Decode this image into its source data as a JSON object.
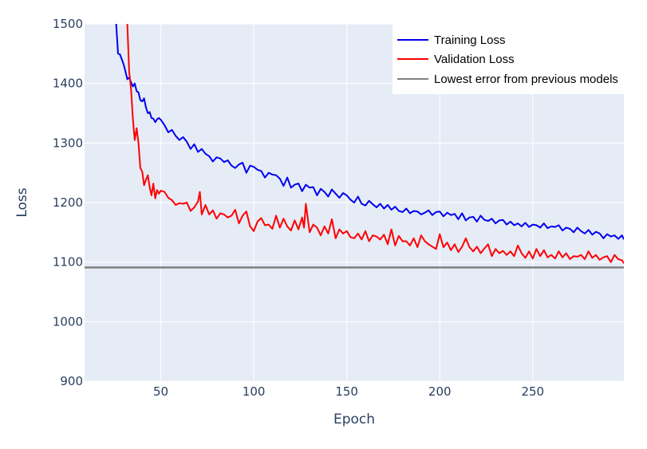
{
  "colors": {
    "plot_bg": "#e5ecf6",
    "grid": "#ffffff",
    "training": "#0000ee",
    "validation": "#ff0000",
    "baseline": "#808080",
    "legend_bg": "#ffffff"
  },
  "chart_data": {
    "type": "line",
    "title": "",
    "xlabel": "Epoch",
    "ylabel": "Loss",
    "xlim": [
      9,
      299
    ],
    "ylim": [
      900,
      1500
    ],
    "xticks": [
      50,
      100,
      150,
      200,
      250
    ],
    "yticks": [
      900,
      1000,
      1100,
      1200,
      1300,
      1400,
      1500
    ],
    "grid": true,
    "legend_position": "top-right",
    "legend": [
      "Training Loss",
      "Validation Loss",
      "Lowest error from previous models"
    ],
    "series": [
      {
        "name": "Training Loss",
        "color_key": "training",
        "x": [
          26,
          27,
          28,
          29,
          30,
          31,
          32,
          33,
          34,
          35,
          36,
          37,
          38,
          39,
          40,
          41,
          42,
          43,
          44,
          45,
          46,
          47,
          48,
          49,
          50,
          52,
          54,
          56,
          58,
          60,
          62,
          64,
          66,
          68,
          70,
          72,
          74,
          76,
          78,
          80,
          82,
          84,
          86,
          88,
          90,
          92,
          94,
          96,
          98,
          100,
          102,
          104,
          106,
          108,
          110,
          112,
          114,
          116,
          118,
          120,
          122,
          124,
          126,
          128,
          130,
          132,
          134,
          136,
          138,
          140,
          142,
          144,
          146,
          148,
          150,
          152,
          154,
          156,
          158,
          160,
          162,
          164,
          166,
          168,
          170,
          172,
          174,
          176,
          178,
          180,
          182,
          184,
          186,
          188,
          190,
          192,
          194,
          196,
          198,
          200,
          202,
          204,
          206,
          208,
          210,
          212,
          214,
          216,
          218,
          220,
          222,
          224,
          226,
          228,
          230,
          232,
          234,
          236,
          238,
          240,
          242,
          244,
          246,
          248,
          250,
          252,
          254,
          256,
          258,
          260,
          262,
          264,
          266,
          268,
          270,
          272,
          274,
          276,
          278,
          280,
          282,
          284,
          286,
          288,
          290,
          292,
          294,
          296,
          298,
          299
        ],
        "values": [
          1500,
          1450,
          1449,
          1441,
          1432,
          1420,
          1407,
          1410,
          1402,
          1395,
          1400,
          1387,
          1385,
          1372,
          1370,
          1375,
          1360,
          1350,
          1352,
          1342,
          1341,
          1335,
          1340,
          1342,
          1339,
          1330,
          1318,
          1322,
          1312,
          1305,
          1310,
          1302,
          1290,
          1298,
          1285,
          1290,
          1282,
          1278,
          1269,
          1276,
          1274,
          1268,
          1271,
          1262,
          1258,
          1264,
          1267,
          1250,
          1262,
          1260,
          1255,
          1253,
          1242,
          1250,
          1247,
          1246,
          1240,
          1228,
          1242,
          1225,
          1230,
          1232,
          1219,
          1230,
          1225,
          1226,
          1212,
          1223,
          1218,
          1210,
          1222,
          1215,
          1208,
          1216,
          1212,
          1205,
          1200,
          1210,
          1198,
          1195,
          1203,
          1197,
          1192,
          1198,
          1190,
          1196,
          1188,
          1193,
          1186,
          1184,
          1190,
          1182,
          1186,
          1185,
          1180,
          1183,
          1187,
          1179,
          1184,
          1185,
          1177,
          1183,
          1179,
          1181,
          1172,
          1182,
          1170,
          1175,
          1176,
          1168,
          1178,
          1171,
          1169,
          1173,
          1165,
          1170,
          1171,
          1163,
          1168,
          1162,
          1165,
          1160,
          1166,
          1159,
          1163,
          1162,
          1158,
          1165,
          1157,
          1160,
          1159,
          1162,
          1153,
          1158,
          1156,
          1150,
          1158,
          1152,
          1148,
          1154,
          1146,
          1151,
          1148,
          1140,
          1147,
          1143,
          1145,
          1139,
          1145,
          1138
        ]
      },
      {
        "name": "Validation Loss",
        "color_key": "validation",
        "x": [
          32,
          33,
          34,
          35,
          36,
          37,
          38,
          39,
          40,
          41,
          42,
          43,
          44,
          45,
          46,
          47,
          48,
          49,
          50,
          52,
          54,
          56,
          58,
          60,
          62,
          64,
          66,
          68,
          70,
          71,
          72,
          74,
          76,
          78,
          80,
          82,
          84,
          86,
          88,
          90,
          92,
          94,
          96,
          98,
          100,
          102,
          104,
          106,
          108,
          110,
          112,
          114,
          116,
          118,
          120,
          122,
          124,
          126,
          127,
          128,
          130,
          132,
          134,
          136,
          138,
          140,
          142,
          144,
          146,
          148,
          150,
          152,
          154,
          156,
          158,
          160,
          162,
          164,
          166,
          168,
          170,
          172,
          174,
          176,
          178,
          180,
          182,
          184,
          186,
          188,
          190,
          192,
          194,
          196,
          198,
          200,
          202,
          204,
          206,
          208,
          210,
          212,
          214,
          216,
          218,
          220,
          222,
          224,
          226,
          228,
          230,
          232,
          234,
          236,
          238,
          240,
          242,
          244,
          246,
          248,
          250,
          252,
          254,
          256,
          258,
          260,
          262,
          264,
          266,
          268,
          270,
          272,
          274,
          276,
          278,
          280,
          282,
          284,
          286,
          288,
          290,
          292,
          294,
          296,
          298,
          299
        ],
        "values": [
          1500,
          1420,
          1390,
          1340,
          1305,
          1325,
          1300,
          1258,
          1252,
          1229,
          1238,
          1246,
          1226,
          1212,
          1232,
          1207,
          1221,
          1215,
          1220,
          1218,
          1208,
          1204,
          1196,
          1199,
          1198,
          1200,
          1186,
          1192,
          1202,
          1218,
          1180,
          1196,
          1180,
          1187,
          1173,
          1182,
          1180,
          1175,
          1178,
          1188,
          1165,
          1178,
          1185,
          1160,
          1152,
          1168,
          1174,
          1162,
          1163,
          1156,
          1178,
          1158,
          1173,
          1160,
          1153,
          1170,
          1155,
          1175,
          1158,
          1198,
          1150,
          1163,
          1158,
          1145,
          1160,
          1148,
          1172,
          1140,
          1155,
          1148,
          1152,
          1142,
          1140,
          1148,
          1138,
          1152,
          1135,
          1145,
          1143,
          1138,
          1146,
          1130,
          1155,
          1128,
          1144,
          1135,
          1135,
          1128,
          1140,
          1125,
          1145,
          1135,
          1130,
          1126,
          1122,
          1147,
          1125,
          1133,
          1120,
          1130,
          1117,
          1126,
          1140,
          1125,
          1118,
          1126,
          1115,
          1123,
          1130,
          1110,
          1122,
          1115,
          1119,
          1112,
          1118,
          1110,
          1128,
          1115,
          1107,
          1118,
          1106,
          1122,
          1110,
          1120,
          1108,
          1112,
          1106,
          1118,
          1108,
          1115,
          1105,
          1110,
          1109,
          1112,
          1105,
          1118,
          1107,
          1112,
          1104,
          1108,
          1110,
          1100,
          1112,
          1105,
          1103,
          1098
        ]
      },
      {
        "name": "Lowest error from previous models",
        "color_key": "baseline",
        "x": [
          9,
          299
        ],
        "values": [
          1091,
          1091
        ]
      }
    ]
  }
}
